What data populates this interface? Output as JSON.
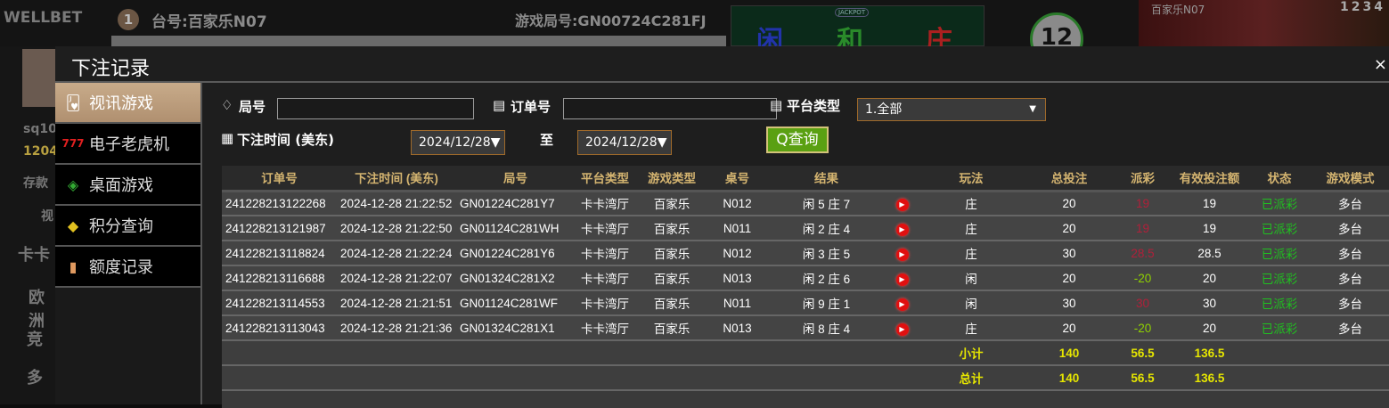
{
  "background": {
    "logo": "WELLBET",
    "round": "1",
    "table_no": "台号:百家乐N07",
    "game_no": "游戏局号:GN00724C281FJ",
    "bet_labels": [
      "闲",
      "和",
      "庄"
    ],
    "jackpot": "JACKPOT",
    "countdown": "12",
    "video_label": "百家乐N07",
    "video_nums": "1234",
    "user": "sq10",
    "balance": "1204",
    "deposit": "存款",
    "side_labels": [
      "视",
      "卡卡",
      "欧洲",
      "竞",
      "多"
    ]
  },
  "modal": {
    "title": "下注记录",
    "close": "×",
    "menu": [
      {
        "label": "视讯游戏",
        "icon": "cards-icon",
        "active": true
      },
      {
        "label": "电子老虎机",
        "icon": "slot-777-icon"
      },
      {
        "label": "桌面游戏",
        "icon": "chips-icon"
      },
      {
        "label": "积分查询",
        "icon": "diamond-icon"
      },
      {
        "label": "额度记录",
        "icon": "document-icon"
      }
    ],
    "filters": {
      "round_label": "局号",
      "round_value": "",
      "order_label": "订单号",
      "order_value": "",
      "platform_label": "平台类型",
      "platform_value": "1.全部",
      "time_label": "下注时间 (美东)",
      "date_from": "2024/12/28▼",
      "to": "至",
      "date_to": "2024/12/28▼",
      "query": "查询"
    },
    "table": {
      "headers": [
        "订单号",
        "下注时间 (美东)",
        "局号",
        "平台类型",
        "游戏类型",
        "桌号",
        "结果",
        "",
        "玩法",
        "总投注",
        "派彩",
        "有效投注额",
        "状态",
        "游戏模式"
      ],
      "rows": [
        [
          "241228213122268",
          "2024-12-28 21:22:52",
          "GN01224C281Y7",
          "卡卡湾厅",
          "百家乐",
          "N012",
          "闲 5 庄 7",
          "庄",
          "20",
          "19",
          "19",
          "已派彩",
          "多台"
        ],
        [
          "241228213121987",
          "2024-12-28 21:22:50",
          "GN01124C281WH",
          "卡卡湾厅",
          "百家乐",
          "N011",
          "闲 2 庄 4",
          "庄",
          "20",
          "19",
          "19",
          "已派彩",
          "多台"
        ],
        [
          "241228213118824",
          "2024-12-28 21:22:24",
          "GN01224C281Y6",
          "卡卡湾厅",
          "百家乐",
          "N012",
          "闲 3 庄 5",
          "庄",
          "30",
          "28.5",
          "28.5",
          "已派彩",
          "多台"
        ],
        [
          "241228213116688",
          "2024-12-28 21:22:07",
          "GN01324C281X2",
          "卡卡湾厅",
          "百家乐",
          "N013",
          "闲 2 庄 6",
          "闲",
          "20",
          "-20",
          "20",
          "已派彩",
          "多台"
        ],
        [
          "241228213114553",
          "2024-12-28 21:21:51",
          "GN01124C281WF",
          "卡卡湾厅",
          "百家乐",
          "N011",
          "闲 9 庄 1",
          "闲",
          "30",
          "30",
          "30",
          "已派彩",
          "多台"
        ],
        [
          "241228213113043",
          "2024-12-28 21:21:36",
          "GN01324C281X1",
          "卡卡湾厅",
          "百家乐",
          "N013",
          "闲 8 庄 4",
          "庄",
          "20",
          "-20",
          "20",
          "已派彩",
          "多台"
        ]
      ],
      "payout_colors": {
        "win": "#b0203a",
        "loss": "#8fd000"
      },
      "status_color": "#20c020",
      "subtotal": {
        "label": "小计",
        "total_bet": "140",
        "payout": "56.5",
        "valid": "136.5"
      },
      "total": {
        "label": "总计",
        "total_bet": "140",
        "payout": "56.5",
        "valid": "136.5"
      }
    }
  }
}
